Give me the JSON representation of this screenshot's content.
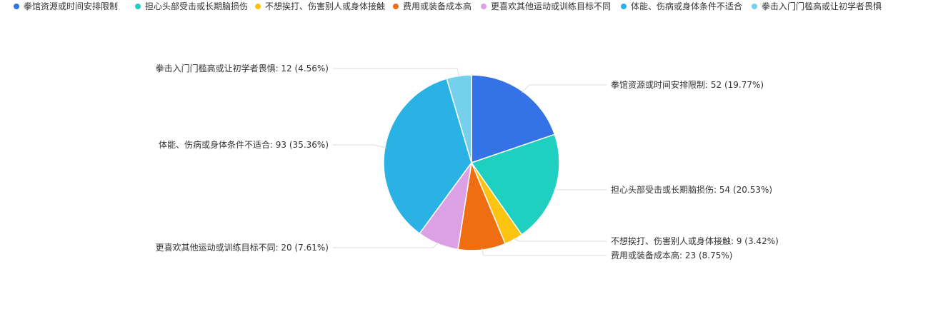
{
  "chart_data": {
    "type": "pie",
    "legend_position": "top-left",
    "start_angle_deg": 90,
    "direction": "clockwise",
    "series": [
      {
        "name": "拳馆资源或时间安排限制",
        "value": 52,
        "percent": "19.77%",
        "color": "#3572e8"
      },
      {
        "name": "担心头部受击或长期脑损伤",
        "value": 54,
        "percent": "20.53%",
        "color": "#1fcfc0"
      },
      {
        "name": "不想挨打、伤害别人或身体接触",
        "value": 9,
        "percent": "3.42%",
        "color": "#fcc411"
      },
      {
        "name": "费用或装备成本高",
        "value": 23,
        "percent": "8.75%",
        "color": "#ef6e12"
      },
      {
        "name": "更喜欢其他运动或训练目标不同",
        "value": 20,
        "percent": "7.61%",
        "color": "#dba1e4"
      },
      {
        "name": "体能、伤病或身体条件不适合",
        "value": 93,
        "percent": "35.36%",
        "color": "#2ab2e5"
      },
      {
        "name": "拳击入门门槛高或让初学者畏惧",
        "value": 12,
        "percent": "4.56%",
        "color": "#74d0ed"
      }
    ]
  }
}
